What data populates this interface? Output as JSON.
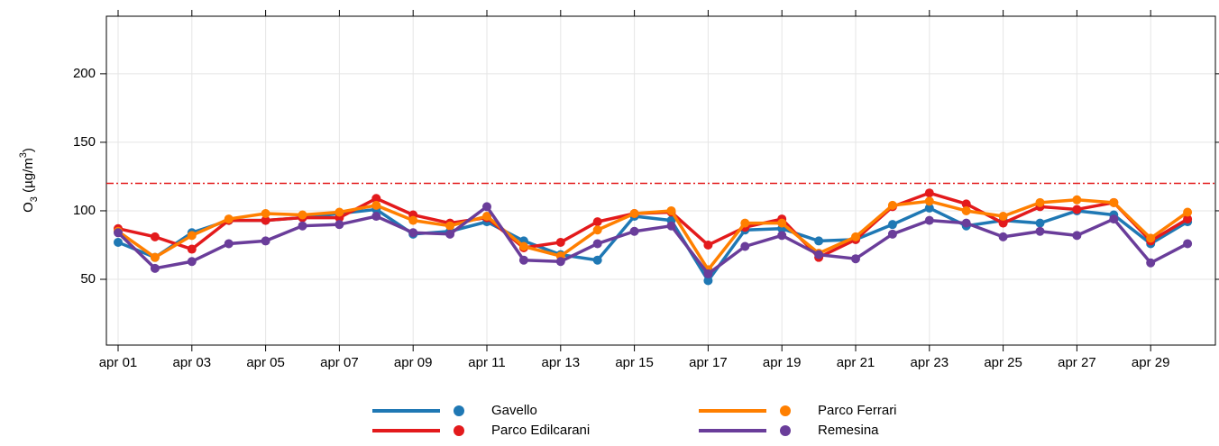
{
  "chart_data": {
    "type": "line",
    "ylabel": {
      "main": "O",
      "sub": "3",
      "mid": " (µg/m",
      "sup": "3",
      "end": ")"
    },
    "categories": [
      "apr 01",
      null,
      "apr 03",
      null,
      "apr 05",
      null,
      "apr 07",
      null,
      "apr 09",
      null,
      "apr 11",
      null,
      "apr 13",
      null,
      "apr 15",
      null,
      "apr 17",
      null,
      "apr 19",
      null,
      "apr 21",
      null,
      "apr 23",
      null,
      "apr 25",
      null,
      "apr 27",
      null,
      "apr 29",
      null
    ],
    "series": [
      {
        "name": "Gavello",
        "color": "#1f78b4",
        "values": [
          77,
          66,
          84,
          93,
          93,
          95,
          98,
          101,
          83,
          85,
          92,
          78,
          68,
          64,
          96,
          93,
          49,
          86,
          87,
          78,
          79,
          90,
          102,
          89,
          93,
          91,
          100,
          97,
          76,
          92
        ]
      },
      {
        "name": "Parco Edilcarani",
        "color": "#e31a1c",
        "values": [
          87,
          81,
          72,
          93,
          93,
          95,
          95,
          109,
          97,
          91,
          95,
          73,
          77,
          92,
          98,
          99,
          75,
          88,
          94,
          66,
          79,
          103,
          113,
          105,
          91,
          103,
          101,
          106,
          78,
          94
        ]
      },
      {
        "name": "Parco Ferrari",
        "color": "#ff7f00",
        "values": [
          85,
          66,
          82,
          94,
          98,
          97,
          99,
          104,
          93,
          89,
          96,
          74,
          67,
          86,
          98,
          100,
          57,
          91,
          91,
          69,
          81,
          104,
          107,
          100,
          96,
          106,
          108,
          106,
          80,
          99
        ]
      },
      {
        "name": "Remesina",
        "color": "#6a3d9a",
        "values": [
          84,
          58,
          63,
          76,
          78,
          89,
          90,
          96,
          84,
          83,
          103,
          64,
          63,
          76,
          85,
          89,
          54,
          74,
          82,
          68,
          65,
          83,
          93,
          91,
          81,
          85,
          82,
          94,
          62,
          76
        ]
      }
    ],
    "threshold": {
      "value": 120,
      "color": "#e31a1c"
    },
    "ylim": [
      2,
      242
    ],
    "yticks": [
      50,
      100,
      150,
      200
    ],
    "grid": true
  }
}
